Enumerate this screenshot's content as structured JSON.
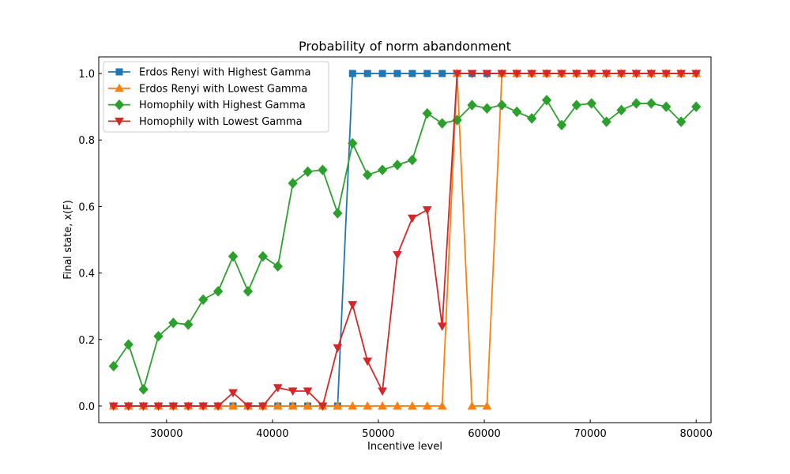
{
  "chart_data": {
    "type": "line",
    "title": "Probability of norm abandonment",
    "xlabel": "Incentive level",
    "ylabel": "Final state, x(F)",
    "xlim": [
      23600,
      81400
    ],
    "ylim": [
      -0.05,
      1.05
    ],
    "xticks": [
      30000,
      40000,
      50000,
      60000,
      70000,
      80000
    ],
    "yticks": [
      0.0,
      0.2,
      0.4,
      0.6,
      0.8,
      1.0
    ],
    "xtick_labels": [
      "30000",
      "40000",
      "50000",
      "60000",
      "70000",
      "80000"
    ],
    "ytick_labels": [
      "0.0",
      "0.2",
      "0.4",
      "0.6",
      "0.8",
      "1.0"
    ],
    "grid": false,
    "legend_position": "top-left",
    "x": [
      25000,
      26410,
      27820,
      29230,
      30640,
      32050,
      33460,
      34870,
      36280,
      37690,
      39100,
      40510,
      41920,
      43330,
      44740,
      46150,
      47560,
      48970,
      50380,
      51790,
      53200,
      54610,
      56020,
      57430,
      58840,
      60250,
      61660,
      63070,
      64480,
      65890,
      67300,
      68710,
      70120,
      71530,
      72940,
      74350,
      75760,
      77170,
      78580,
      80000
    ],
    "series": [
      {
        "name": "Erdos Renyi with Highest Gamma",
        "color": "#1f77b4",
        "marker": "square",
        "values": [
          0,
          0,
          0,
          0,
          0,
          0,
          0,
          0,
          0,
          0,
          0,
          0,
          0,
          0,
          0,
          0,
          1,
          1,
          1,
          1,
          1,
          1,
          1,
          1,
          1,
          1,
          1,
          1,
          1,
          1,
          1,
          1,
          1,
          1,
          1,
          1,
          1,
          1,
          1,
          1
        ]
      },
      {
        "name": "Erdos Renyi with Lowest Gamma",
        "color": "#ff7f0e",
        "marker": "triangle-up",
        "values": [
          0,
          0,
          0,
          0,
          0,
          0,
          0,
          0,
          0,
          0,
          0,
          0,
          0,
          0,
          0,
          0,
          0,
          0,
          0,
          0,
          0,
          0,
          0,
          1,
          0,
          0,
          1,
          1,
          1,
          1,
          1,
          1,
          1,
          1,
          1,
          1,
          1,
          1,
          1,
          1
        ]
      },
      {
        "name": "Homophily with Highest Gamma",
        "color": "#2ca02c",
        "marker": "diamond",
        "values": [
          0.12,
          0.185,
          0.05,
          0.21,
          0.25,
          0.245,
          0.32,
          0.345,
          0.45,
          0.345,
          0.45,
          0.42,
          0.67,
          0.705,
          0.71,
          0.58,
          0.79,
          0.695,
          0.71,
          0.725,
          0.74,
          0.88,
          0.85,
          0.86,
          0.905,
          0.895,
          0.905,
          0.885,
          0.865,
          0.92,
          0.845,
          0.905,
          0.91,
          0.855,
          0.89,
          0.91,
          0.91,
          0.9,
          0.855,
          0.9
        ]
      },
      {
        "name": "Homophily with Lowest Gamma",
        "color": "#d62728",
        "marker": "triangle-down",
        "values": [
          0,
          0,
          0,
          0,
          0,
          0,
          0,
          0,
          0.04,
          0,
          0,
          0.055,
          0.045,
          0.045,
          0,
          0.175,
          0.305,
          0.135,
          0.045,
          0.455,
          0.565,
          0.59,
          0.24,
          1,
          1,
          1,
          1,
          1,
          1,
          1,
          1,
          1,
          1,
          1,
          1,
          1,
          1,
          1,
          1,
          1
        ]
      }
    ]
  }
}
